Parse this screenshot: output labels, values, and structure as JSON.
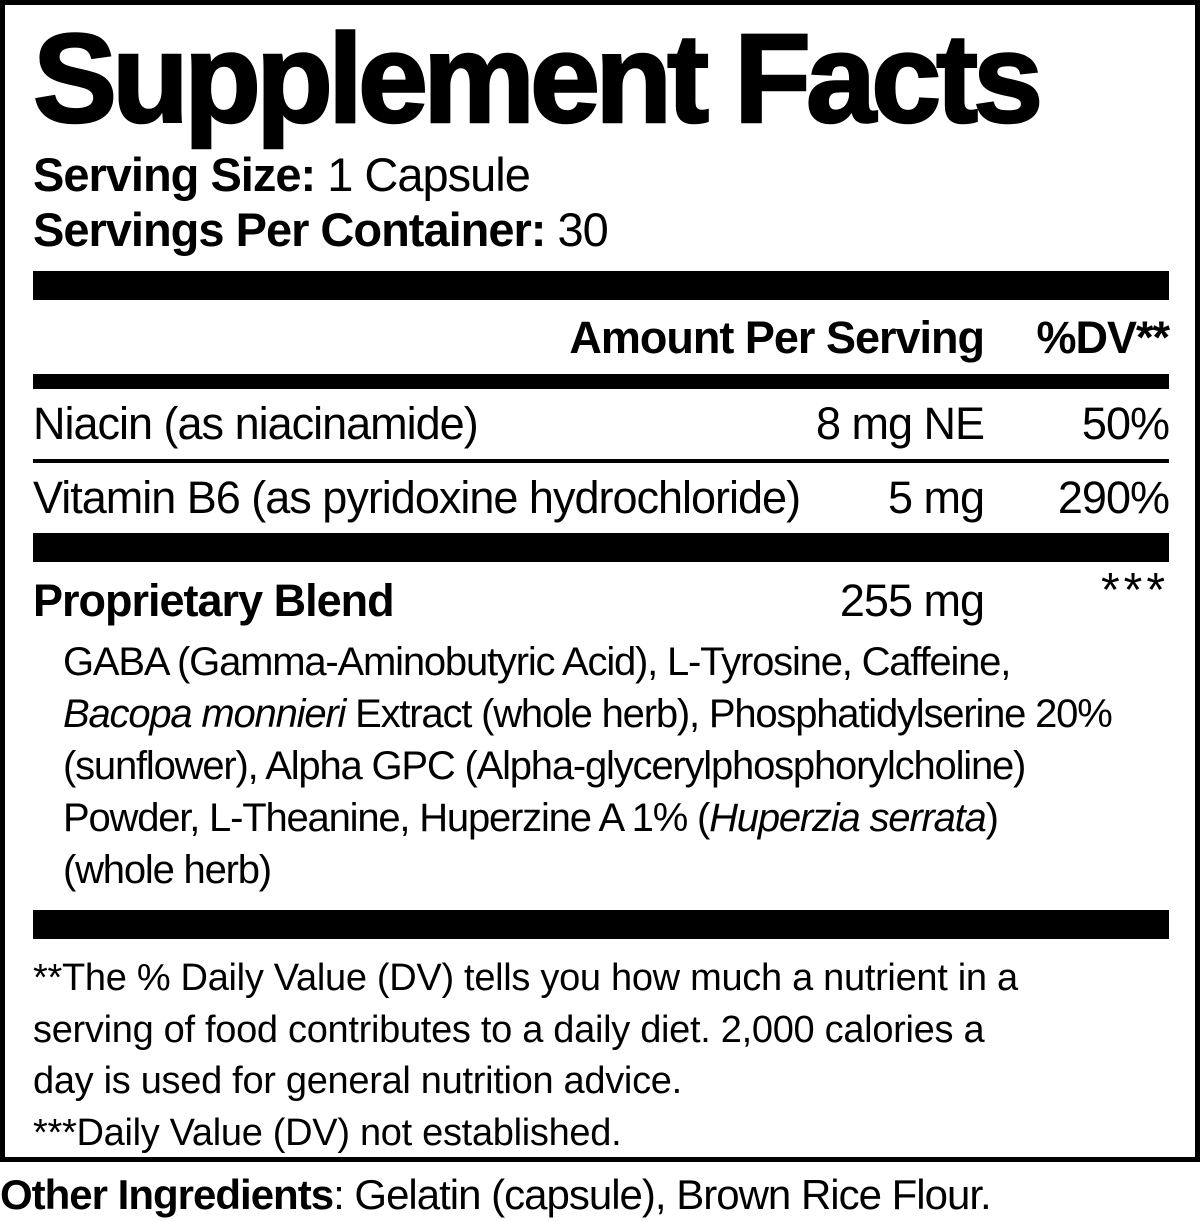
{
  "colors": {
    "ink": "#000000",
    "paper": "#ffffff"
  },
  "label": {
    "title": "Supplement Facts",
    "serving": {
      "size_label": "Serving Size:",
      "size_value": " 1 Capsule",
      "per_container_label": "Servings Per Container:",
      "per_container_value": " 30"
    },
    "table": {
      "amount_header": "Amount Per Serving",
      "dv_header": "%DV**",
      "nutrients": [
        {
          "name": "Niacin (as niacinamide)",
          "amount": "8 mg NE",
          "dv": "50%"
        },
        {
          "name": "Vitamin B6 (as pyridoxine hydrochloride)",
          "amount": "5 mg",
          "dv": "290%"
        }
      ],
      "blend": {
        "name": "Proprietary Blend",
        "amount": "255 mg",
        "dv": "***",
        "description": [
          {
            "t": "GABA (Gamma-Aminobutyric Acid), L-Tyrosine, Caffeine,"
          },
          {
            "br": true
          },
          {
            "t": "Bacopa monnieri",
            "i": true
          },
          {
            "t": " Extract (whole herb), Phosphatidylserine 20%"
          },
          {
            "br": true
          },
          {
            "t": "(sunflower), Alpha GPC (Alpha-glycerylphosphorylcholine)"
          },
          {
            "br": true
          },
          {
            "t": "Powder, L-Theanine, Huperzine A 1% ("
          },
          {
            "t": "Huperzia serrata",
            "i": true
          },
          {
            "t": ")"
          },
          {
            "br": true
          },
          {
            "t": "(whole herb)"
          }
        ]
      }
    },
    "footnote_lines": [
      "**The % Daily Value (DV) tells you how much a nutrient in a",
      "serving of food contributes to a daily diet. 2,000 calories a",
      "day is used for general nutrition advice.",
      "***Daily Value (DV) not established."
    ],
    "other_ingredients": {
      "label": "Other Ingredients",
      "separator": ": ",
      "value": "Gelatin (capsule), Brown Rice Flour."
    }
  }
}
